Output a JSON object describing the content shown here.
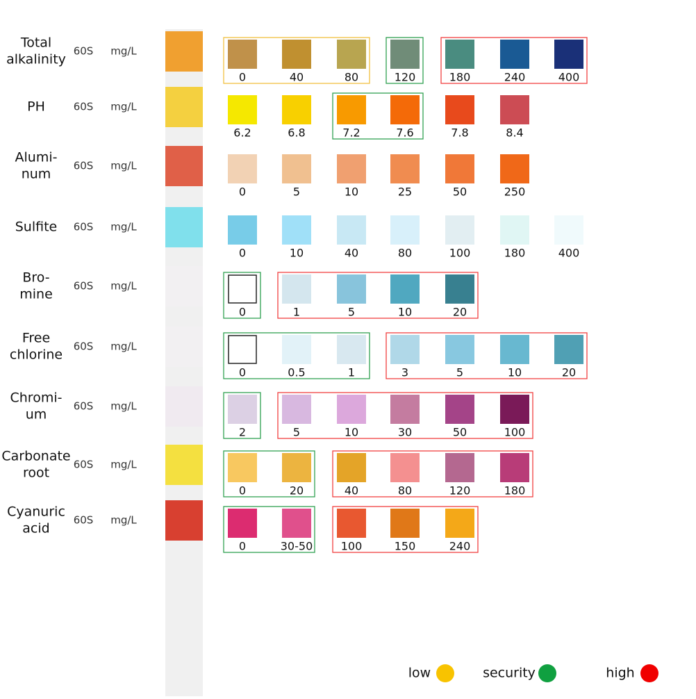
{
  "rows": [
    {
      "label": [
        "Total",
        "alkalinity"
      ],
      "time": "60S",
      "unit": "mg/L",
      "pad": "#f0a030",
      "groups": [
        {
          "box": "#f0c040",
          "swatches": [
            {
              "label": "0",
              "color": "#c0914a"
            },
            {
              "label": "40",
              "color": "#c09030"
            },
            {
              "label": "80",
              "color": "#b8a550"
            }
          ]
        },
        {
          "box": "#30a050",
          "swatches": [
            {
              "label": "120",
              "color": "#708c78"
            }
          ]
        },
        {
          "box": "#f04040",
          "swatches": [
            {
              "label": "180",
              "color": "#4a8c80"
            },
            {
              "label": "240",
              "color": "#1a5a94"
            },
            {
              "label": "400",
              "color": "#1a3078"
            }
          ]
        }
      ]
    },
    {
      "label": [
        "PH"
      ],
      "time": "60S",
      "unit": "mg/L",
      "pad": "#f4d040",
      "groups": [
        {
          "swatches": [
            {
              "label": "6.2",
              "color": "#f5e800"
            },
            {
              "label": "6.8",
              "color": "#f8d000"
            }
          ]
        },
        {
          "box": "#30a050",
          "swatches": [
            {
              "label": "7.2",
              "color": "#f89a00"
            },
            {
              "label": "7.6",
              "color": "#f46a08"
            }
          ]
        },
        {
          "swatches": [
            {
              "label": "7.8",
              "color": "#e84a1c"
            },
            {
              "label": "8.4",
              "color": "#cc4c54"
            }
          ]
        }
      ]
    },
    {
      "label": [
        "Alumi-",
        "num"
      ],
      "time": "60S",
      "unit": "mg/L",
      "pad": "#e06048",
      "groups": [
        {
          "swatches": [
            {
              "label": "0",
              "color": "#f2d2b4"
            },
            {
              "label": "5",
              "color": "#f0c090"
            },
            {
              "label": "10",
              "color": "#f0a070"
            },
            {
              "label": "25",
              "color": "#f08c50"
            },
            {
              "label": "50",
              "color": "#f07838"
            },
            {
              "label": "250",
              "color": "#f06818"
            }
          ]
        }
      ]
    },
    {
      "label": [
        "Sulfite"
      ],
      "time": "60S",
      "unit": "mg/L",
      "pad": "#80e0ec",
      "groups": [
        {
          "swatches": [
            {
              "label": "0",
              "color": "#78cce8"
            },
            {
              "label": "10",
              "color": "#a0e0f8"
            },
            {
              "label": "40",
              "color": "#c8e8f4"
            },
            {
              "label": "80",
              "color": "#d8f0fa"
            },
            {
              "label": "100",
              "color": "#e2eef2"
            },
            {
              "label": "180",
              "color": "#e0f6f4"
            },
            {
              "label": "400",
              "color": "#f0fafc"
            }
          ]
        }
      ]
    },
    {
      "label": [
        "Bro-",
        "mine"
      ],
      "time": "60S",
      "unit": "mg/L",
      "pad": "#f2f0f2",
      "groups": [
        {
          "box": "#30a050",
          "swatches": [
            {
              "label": "0",
              "color": "#ffffff"
            }
          ]
        },
        {
          "box": "#f04040",
          "swatches": [
            {
              "label": "1",
              "color": "#d4e6ee"
            },
            {
              "label": "5",
              "color": "#88c4dc"
            },
            {
              "label": "10",
              "color": "#50a8c0"
            },
            {
              "label": "20",
              "color": "#388090"
            }
          ]
        }
      ]
    },
    {
      "label": [
        "Free",
        "chlorine"
      ],
      "time": "60S",
      "unit": "mg/L",
      "pad": "#f2f0f2",
      "groups": [
        {
          "box": "#30a050",
          "swatches": [
            {
              "label": "0",
              "color": "#ffffff"
            },
            {
              "label": "0.5",
              "color": "#e2f2f8"
            },
            {
              "label": "1",
              "color": "#d8e8f0"
            }
          ]
        },
        {
          "box": "#f04040",
          "swatches": [
            {
              "label": "3",
              "color": "#b0d8e8"
            },
            {
              "label": "5",
              "color": "#88c8e0"
            },
            {
              "label": "10",
              "color": "#68b8d0"
            },
            {
              "label": "20",
              "color": "#50a0b4"
            }
          ]
        }
      ]
    },
    {
      "label": [
        "Chromi-",
        "um"
      ],
      "time": "60S",
      "unit": "mg/L",
      "pad": "#f0eaf0",
      "groups": [
        {
          "box": "#30a050",
          "swatches": [
            {
              "label": "2",
              "color": "#dcd0e4"
            }
          ]
        },
        {
          "box": "#f04040",
          "swatches": [
            {
              "label": "5",
              "color": "#d8b8e0"
            },
            {
              "label": "10",
              "color": "#dca8dc"
            },
            {
              "label": "30",
              "color": "#c47ca0"
            },
            {
              "label": "50",
              "color": "#a44488"
            },
            {
              "label": "100",
              "color": "#7a1a58"
            }
          ]
        }
      ]
    },
    {
      "label": [
        "Carbonate",
        "root"
      ],
      "time": "60S",
      "unit": "mg/L",
      "pad": "#f4e040",
      "groups": [
        {
          "box": "#30a050",
          "swatches": [
            {
              "label": "0",
              "color": "#f8c860"
            },
            {
              "label": "20",
              "color": "#ecb440"
            }
          ]
        },
        {
          "box": "#f04040",
          "swatches": [
            {
              "label": "40",
              "color": "#e4a428"
            },
            {
              "label": "80",
              "color": "#f49090"
            },
            {
              "label": "120",
              "color": "#b46890"
            },
            {
              "label": "180",
              "color": "#b83c78"
            }
          ]
        }
      ]
    },
    {
      "label": [
        "Cyanuric",
        "acid"
      ],
      "time": "60S",
      "unit": "mg/L",
      "pad": "#d84030",
      "groups": [
        {
          "box": "#30a050",
          "swatches": [
            {
              "label": "0",
              "color": "#dc2c70"
            },
            {
              "label": "30-50",
              "color": "#e0508c"
            }
          ]
        },
        {
          "box": "#f04040",
          "swatches": [
            {
              "label": "100",
              "color": "#e85830"
            },
            {
              "label": "150",
              "color": "#e07818"
            },
            {
              "label": "240",
              "color": "#f4a818"
            }
          ]
        }
      ]
    }
  ],
  "legend": [
    {
      "label": "low",
      "color": "#f8c300"
    },
    {
      "label": "security",
      "color": "#10a040"
    },
    {
      "label": "high",
      "color": "#f00000"
    }
  ]
}
